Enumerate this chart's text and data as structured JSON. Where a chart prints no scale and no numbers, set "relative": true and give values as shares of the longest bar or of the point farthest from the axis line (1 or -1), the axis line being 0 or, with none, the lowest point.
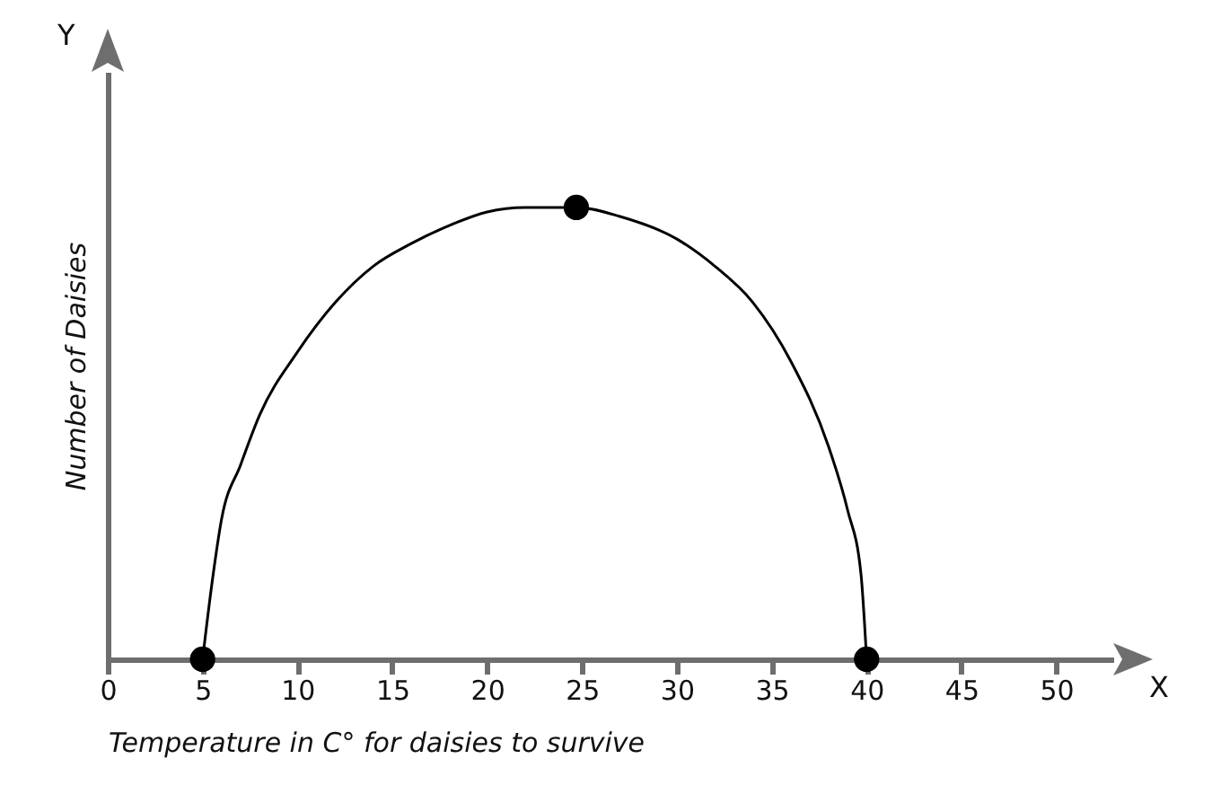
{
  "chart_data": {
    "type": "line",
    "xlabel": "Temperature in C° for daisies to survive",
    "ylabel": "Number of Daisies",
    "annotations": [
      "X",
      "Y"
    ],
    "relative": true,
    "xlim": [
      0,
      53
    ],
    "xticks": [
      0,
      5,
      10,
      15,
      20,
      25,
      30,
      35,
      40,
      45,
      50
    ],
    "grid": false,
    "series": [
      {
        "color": "#000000",
        "marker": "none",
        "x": [
          5,
          5.5,
          6,
          7,
          8,
          10,
          12,
          14,
          16,
          18,
          20,
          22,
          24.7,
          27,
          30,
          32,
          34,
          36,
          38,
          39,
          39.7,
          40
        ],
        "values": [
          0,
          0.17,
          0.31,
          0.43,
          0.54,
          0.68,
          0.79,
          0.87,
          0.92,
          0.96,
          0.99,
          1.0,
          1.0,
          0.98,
          0.93,
          0.87,
          0.79,
          0.66,
          0.47,
          0.33,
          0.19,
          0
        ]
      },
      {
        "type": "scatter",
        "color": "#000000",
        "marker": "circle",
        "x": [
          5,
          24.7,
          40
        ],
        "values": [
          0,
          1,
          0
        ]
      }
    ]
  }
}
